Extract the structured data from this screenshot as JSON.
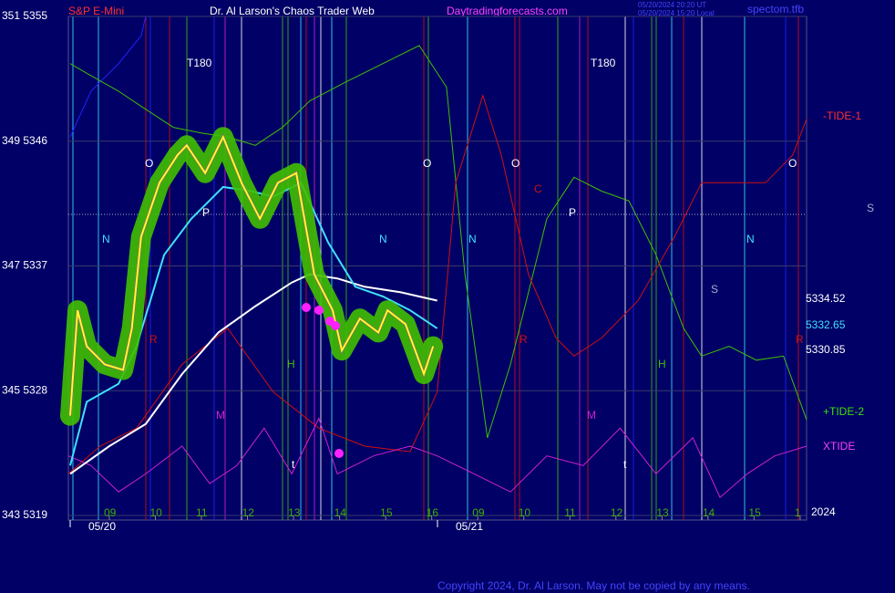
{
  "chart_data": {
    "type": "line",
    "title": "Dr. Al Larson's Chaos Trader Web",
    "instrument": "S&P E-Mini",
    "site": "Daytradingforecasts.com",
    "timestamps": [
      "05/20/2024 20:20 UT",
      "05/20/2024 15:20 Local"
    ],
    "file": "spectom.tfb",
    "copyright": "Copyright 2024, Dr. Al Larson. May not be copied by any means.",
    "xlim": [
      -0.89,
      15.14
    ],
    "xticks": [
      {
        "value": 0,
        "label": "09"
      },
      {
        "value": 1,
        "label": "10"
      },
      {
        "value": 2,
        "label": "11"
      },
      {
        "value": 3,
        "label": "12"
      },
      {
        "value": 4,
        "label": "13"
      },
      {
        "value": 5,
        "label": "14"
      },
      {
        "value": 6,
        "label": "15"
      },
      {
        "value": 7,
        "label": "16"
      },
      {
        "value": 8,
        "label": "09"
      },
      {
        "value": 9,
        "label": "10"
      },
      {
        "value": 10,
        "label": "11"
      },
      {
        "value": 11,
        "label": "12"
      },
      {
        "value": 12,
        "label": "13"
      },
      {
        "value": 13,
        "label": "14"
      },
      {
        "value": 14,
        "label": "15"
      },
      {
        "value": 15,
        "label": "1"
      }
    ],
    "dates": [
      "05/20",
      "05/21"
    ],
    "ylim": [
      5319,
      5355
    ],
    "yticks": [
      {
        "value": 5355,
        "label": "351 5355"
      },
      {
        "value": 5346,
        "label": "349 5346"
      },
      {
        "value": 5337,
        "label": "347 5337"
      },
      {
        "value": 5328,
        "label": "345 5328"
      },
      {
        "value": 5319,
        "label": "343 5319"
      }
    ],
    "grid": true,
    "series": [
      {
        "color": "#2222ff",
        "x": [
          -0.85,
          -0.4,
          0.2,
          0.69,
          0.79
        ],
        "values": [
          5346.3,
          5349.6,
          5351.6,
          5353.6,
          5355.0
        ]
      },
      {
        "color": "#40c000",
        "x": [
          -0.85,
          -0.49,
          0.2,
          0.79,
          1.39,
          1.98,
          2.57,
          3.17,
          3.76,
          4.35,
          5.15,
          5.94,
          6.73,
          7.32,
          7.72,
          8.21,
          8.71,
          9.5,
          10.09,
          10.69,
          11.28,
          11.87,
          12.47,
          12.86,
          13.46,
          14.05,
          14.64,
          15.14
        ],
        "values": [
          5351.6,
          5350.9,
          5349.6,
          5348.3,
          5347.0,
          5346.6,
          5346.3,
          5345.7,
          5347.0,
          5348.9,
          5350.3,
          5351.6,
          5352.9,
          5349.9,
          5336.4,
          5324.6,
          5329.9,
          5340.4,
          5343.4,
          5342.4,
          5341.7,
          5337.8,
          5332.5,
          5330.5,
          5331.2,
          5330.2,
          5330.5,
          5325.9
        ]
      },
      {
        "color": "#d01010",
        "x": [
          -0.89,
          -0.2,
          0.59,
          1.58,
          2.57,
          3.56,
          4.55,
          5.54,
          6.53,
          7.12,
          7.52,
          8.11,
          8.51,
          9.1,
          9.7,
          10.09,
          10.69,
          11.48,
          12.27,
          12.86,
          13.46,
          14.25,
          14.84,
          15.14
        ],
        "values": [
          5322.0,
          5324.0,
          5325.3,
          5329.9,
          5332.5,
          5327.9,
          5325.3,
          5324.0,
          5323.6,
          5327.9,
          5343.0,
          5349.3,
          5345.0,
          5336.4,
          5331.8,
          5330.5,
          5331.8,
          5334.5,
          5339.1,
          5343.0,
          5343.0,
          5343.0,
          5345.0,
          5347.6
        ]
      },
      {
        "color": "#d020d0",
        "x": [
          -0.89,
          -0.4,
          0.2,
          0.79,
          1.58,
          2.18,
          2.77,
          3.36,
          3.96,
          4.55,
          4.95,
          5.74,
          6.53,
          7.12,
          7.92,
          8.71,
          9.5,
          10.29,
          11.09,
          11.87,
          12.67,
          13.26,
          13.85,
          14.45,
          15.14
        ],
        "values": [
          5323.3,
          5322.6,
          5320.7,
          5322.0,
          5324.0,
          5321.3,
          5322.6,
          5325.3,
          5322.0,
          5326.0,
          5322.0,
          5323.3,
          5324.0,
          5323.3,
          5322.0,
          5320.7,
          5323.3,
          5322.6,
          5325.3,
          5322.0,
          5324.6,
          5320.3,
          5322.0,
          5323.3,
          5324.0
        ]
      },
      {
        "color": "#ffffff",
        "x": [
          -0.85,
          0,
          0.79,
          1.58,
          2.37,
          3.17,
          3.96,
          4.35,
          4.95,
          5.54,
          6.33,
          7.12
        ],
        "values": [
          5322.0,
          5324.0,
          5325.6,
          5329.2,
          5332.2,
          5334.1,
          5335.8,
          5336.4,
          5336.1,
          5335.5,
          5335.1,
          5334.5
        ]
      },
      {
        "color": "#40e0ff",
        "x": [
          -0.85,
          -0.49,
          0.2,
          0.59,
          1.19,
          1.78,
          2.47,
          3.07,
          3.56,
          4.16,
          4.75,
          5.34,
          5.94,
          6.53,
          7.12
        ],
        "values": [
          5322.6,
          5327.2,
          5328.5,
          5331.2,
          5337.8,
          5340.4,
          5342.7,
          5342.4,
          5342.0,
          5343.0,
          5338.7,
          5335.5,
          5334.8,
          5333.8,
          5332.5
        ]
      },
      {
        "color": "#ffff20",
        "x": [
          -0.85,
          -0.69,
          -0.49,
          -0.1,
          0.3,
          0.49,
          0.69,
          1.09,
          1.48,
          1.68,
          2.08,
          2.47,
          2.87,
          3.27,
          3.66,
          4.06,
          4.45,
          4.85,
          5.05,
          5.44,
          5.84,
          6.04,
          6.43,
          6.83,
          7.03
        ],
        "values": [
          5326.2,
          5333.8,
          5331.2,
          5329.9,
          5329.5,
          5332.5,
          5339.1,
          5343.0,
          5345.0,
          5345.7,
          5343.7,
          5346.3,
          5343.0,
          5340.4,
          5343.0,
          5343.7,
          5336.4,
          5333.8,
          5330.9,
          5333.2,
          5332.2,
          5333.8,
          5332.8,
          5329.2,
          5331.2
        ]
      }
    ],
    "annotations": [
      "T180",
      "T180",
      "O",
      "O",
      "O",
      "O",
      "N",
      "N",
      "N",
      "N",
      "P",
      "P",
      "R",
      "R",
      "R",
      "M",
      "M",
      "H",
      "H",
      "S",
      "S",
      "C",
      "t",
      "t",
      "-TIDE-1",
      "+TIDE-2",
      "XTIDE",
      "5334.52",
      "5332.65",
      "5330.85",
      "2024"
    ]
  }
}
